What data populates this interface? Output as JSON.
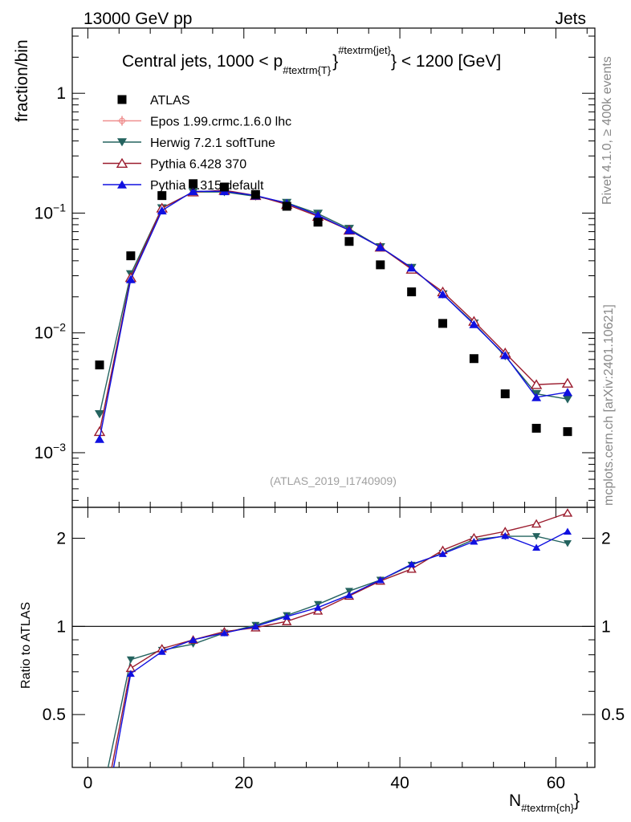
{
  "header": {
    "left": "13000 GeV pp",
    "right": "Jets"
  },
  "side_labels": {
    "rivet": "Rivet 4.1.0, ≥ 400k events",
    "mcplots": "mcplots.cern.ch [arXiv:2401.10621]"
  },
  "watermark": "(ATLAS_2019_I1740909)",
  "chart_data": {
    "type": "scatter",
    "title_parts": {
      "a": "Central jets, 1000 < p",
      "sub": "#textrm{T}",
      "sup": "#textrm{jet}",
      "b": "} < 1200 [GeV]"
    },
    "xlabel_parts": {
      "main": "N",
      "sub": "#textrm{ch}",
      "close": "}"
    },
    "ylabel_main": "fraction/bin",
    "ylabel_ratio": "Ratio to ATLAS",
    "xlim": [
      -2,
      65
    ],
    "ylim_main": [
      0.00035,
      3.5
    ],
    "ylim_ratio": [
      0.33,
      2.55
    ],
    "x_ticks": [
      0,
      20,
      40,
      60
    ],
    "y_ticks_main": [
      {
        "value": 1,
        "base": "1",
        "exp": ""
      },
      {
        "value": 0.1,
        "base": "10",
        "exp": "−1"
      },
      {
        "value": 0.01,
        "base": "10",
        "exp": "−2"
      },
      {
        "value": 0.001,
        "base": "10",
        "exp": "−3"
      }
    ],
    "y_ticks_ratio": [
      {
        "value": 0.5,
        "label": "0.5"
      },
      {
        "value": 1,
        "label": "1"
      },
      {
        "value": 2,
        "label": "2"
      }
    ],
    "x": [
      1.5,
      5.5,
      9.5,
      13.5,
      17.5,
      21.5,
      25.5,
      29.5,
      33.5,
      37.5,
      41.5,
      45.5,
      49.5,
      53.5,
      57.5,
      61.5
    ],
    "data": {
      "name": "ATLAS",
      "values": [
        0.0054,
        0.044,
        0.14,
        0.176,
        0.165,
        0.143,
        0.114,
        0.084,
        0.058,
        0.037,
        0.022,
        0.012,
        0.0061,
        0.0031,
        0.0016,
        0.0015
      ]
    },
    "series": [
      {
        "name": "Epos 1.99.crmc.1.6.0 lhc",
        "color": "#ef8f8f",
        "marker": "cross",
        "values": [],
        "ratio": []
      },
      {
        "name": "Herwig 7.2.1 softTune",
        "color": "#24635f",
        "marker": "triangle-down",
        "values": [
          0.0021,
          0.031,
          0.11,
          0.15,
          0.15,
          0.138,
          0.122,
          0.099,
          0.074,
          0.052,
          0.035,
          0.021,
          0.012,
          0.0064,
          0.0031,
          0.0028
        ],
        "ratio": [
          0.24,
          0.77,
          0.83,
          0.87,
          0.95,
          1.01,
          1.09,
          1.19,
          1.32,
          1.44,
          1.62,
          1.78,
          1.98,
          2.03,
          2.03,
          1.92
        ]
      },
      {
        "name": "Pythia 6.428 370",
        "color": "#9b1c2e",
        "marker": "triangle-up-open",
        "values": [
          0.0015,
          0.029,
          0.11,
          0.15,
          0.155,
          0.14,
          0.118,
          0.094,
          0.072,
          0.052,
          0.034,
          0.022,
          0.0125,
          0.0068,
          0.0037,
          0.0038
        ],
        "ratio": [
          0.2,
          0.72,
          0.84,
          0.9,
          0.96,
          0.99,
          1.04,
          1.13,
          1.27,
          1.43,
          1.57,
          1.82,
          2.01,
          2.11,
          2.24,
          2.44
        ]
      },
      {
        "name": "Pythia 8.315 default",
        "color": "#1010e0",
        "marker": "triangle-up",
        "values": [
          0.0013,
          0.028,
          0.105,
          0.152,
          0.152,
          0.14,
          0.121,
          0.096,
          0.072,
          0.052,
          0.035,
          0.021,
          0.0118,
          0.0065,
          0.0029,
          0.0032
        ],
        "ratio": [
          0.18,
          0.69,
          0.82,
          0.9,
          0.95,
          1.0,
          1.08,
          1.16,
          1.28,
          1.44,
          1.63,
          1.77,
          1.95,
          2.04,
          1.86,
          2.11
        ]
      }
    ]
  }
}
